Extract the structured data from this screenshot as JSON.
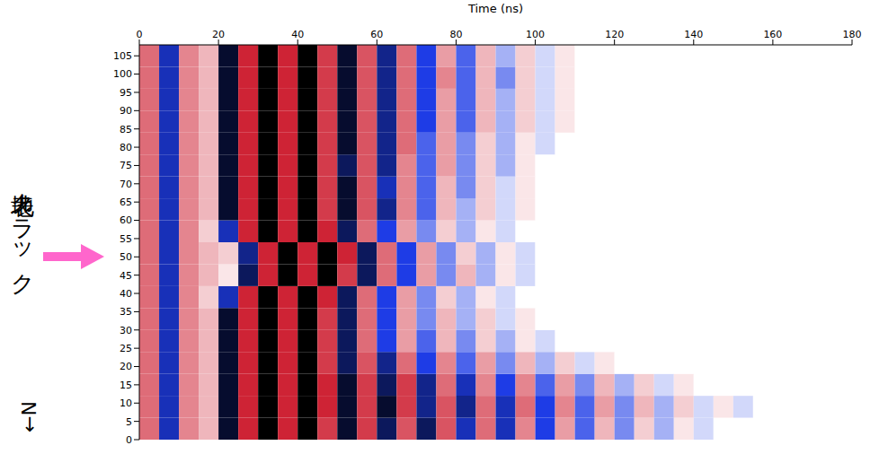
{
  "chart_data": {
    "type": "heatmap",
    "x_label": "Time (ns)",
    "annotations": [
      {
        "text": "地表クラック",
        "y": 50
      },
      {
        "text": "←N"
      }
    ],
    "xlim": [
      0,
      180
    ],
    "xticks": [
      0,
      20,
      40,
      60,
      80,
      100,
      120,
      140,
      160,
      180
    ],
    "ylim": [
      0,
      108
    ],
    "yticks": [
      0,
      5,
      10,
      15,
      20,
      25,
      30,
      35,
      40,
      45,
      50,
      55,
      60,
      65,
      70,
      75,
      80,
      85,
      90,
      95,
      100,
      105
    ],
    "grid": false,
    "color_range": [
      -1,
      1
    ],
    "x": [
      2.5,
      7.5,
      12.5,
      17.5,
      22.5,
      27.5,
      32.5,
      37.5,
      42.5,
      47.5,
      52.5,
      57.5,
      62.5,
      67.5,
      72.5,
      77.5,
      82.5,
      87.5,
      92.5,
      97.5,
      102.5,
      107.5,
      112.5,
      117.5,
      122.5,
      127.5,
      132.5,
      137.5,
      142.5,
      147.5,
      152.5,
      157.5,
      162.5,
      167.5,
      172.5,
      177.5
    ],
    "y": [
      3,
      9,
      15,
      21,
      27,
      33,
      39,
      45,
      51,
      57,
      63,
      69,
      75,
      81,
      87,
      93,
      99,
      105
    ],
    "values": [
      [
        0.6,
        -0.6,
        0.5,
        0.3,
        -0.9,
        0.9,
        -1,
        0.9,
        -1,
        0.8,
        -0.9,
        0.8,
        -0.8,
        0.7,
        -0.8,
        0.7,
        -0.6,
        0.6,
        -0.6,
        0.5,
        -0.5,
        0.4,
        -0.4,
        0.3,
        -0.3,
        0.2,
        -0.2,
        0.1,
        -0.1,
        0,
        0,
        0,
        0,
        0,
        0,
        0
      ],
      [
        0.6,
        -0.6,
        0.5,
        0.3,
        -0.9,
        0.9,
        -1,
        0.9,
        -1,
        0.9,
        -0.9,
        0.8,
        -0.9,
        0.8,
        -0.7,
        0.7,
        -0.7,
        0.6,
        -0.6,
        0.6,
        -0.5,
        0.5,
        -0.4,
        0.4,
        -0.3,
        0.3,
        -0.2,
        0.2,
        -0.1,
        0.1,
        -0.1,
        0,
        0,
        0,
        0,
        0
      ],
      [
        0.6,
        -0.6,
        0.5,
        0.3,
        -0.9,
        0.9,
        -1,
        0.9,
        -1,
        0.9,
        -0.9,
        0.8,
        -0.8,
        0.8,
        -0.7,
        0.6,
        -0.6,
        0.5,
        -0.5,
        0.5,
        -0.4,
        0.4,
        -0.3,
        0.3,
        -0.2,
        0.2,
        -0.1,
        0.1,
        0,
        0,
        0,
        0,
        0,
        0,
        0,
        0
      ],
      [
        0.6,
        -0.6,
        0.5,
        0.3,
        -0.9,
        0.9,
        -1,
        0.9,
        -1,
        0.8,
        -0.8,
        0.7,
        -0.7,
        0.6,
        -0.5,
        0.5,
        -0.4,
        0.4,
        -0.3,
        0.3,
        -0.2,
        0.2,
        -0.1,
        0.1,
        0,
        0,
        0,
        0,
        0,
        0,
        0,
        0,
        0,
        0,
        0,
        0
      ],
      [
        0.6,
        -0.6,
        0.5,
        0.3,
        -0.9,
        0.9,
        -1,
        0.9,
        -1,
        0.8,
        -0.8,
        0.6,
        -0.5,
        0.4,
        -0.4,
        0.3,
        -0.3,
        0.2,
        -0.2,
        0.1,
        -0.1,
        0,
        0,
        0,
        0,
        0,
        0,
        0,
        0,
        0,
        0,
        0,
        0,
        0,
        0,
        0
      ],
      [
        0.6,
        -0.6,
        0.5,
        0.3,
        -0.9,
        0.9,
        -1,
        0.9,
        -1,
        0.8,
        -0.8,
        0.6,
        -0.5,
        0.4,
        -0.3,
        0.3,
        -0.2,
        0.2,
        -0.1,
        0.1,
        0,
        0,
        0,
        0,
        0,
        0,
        0,
        0,
        0,
        0,
        0,
        0,
        0,
        0,
        0,
        0
      ],
      [
        0.6,
        -0.6,
        0.5,
        0.2,
        -0.6,
        0.9,
        -1,
        0.9,
        -1,
        0.9,
        -0.8,
        0.6,
        -0.5,
        0.4,
        -0.3,
        0.2,
        -0.2,
        0.1,
        -0.1,
        0,
        0,
        0,
        0,
        0,
        0,
        0,
        0,
        0,
        0,
        0,
        0,
        0,
        0,
        0,
        0,
        0
      ],
      [
        0.6,
        -0.6,
        0.5,
        0.3,
        0.1,
        -0.8,
        0.9,
        -1,
        0.9,
        -1,
        0.8,
        -0.8,
        0.6,
        -0.5,
        0.4,
        -0.3,
        0.3,
        -0.2,
        0.1,
        -0.1,
        0,
        0,
        0,
        0,
        0,
        0,
        0,
        0,
        0,
        0,
        0,
        0,
        0,
        0,
        0,
        0
      ],
      [
        0.6,
        -0.6,
        0.5,
        0.3,
        0.2,
        -0.7,
        0.9,
        -1,
        0.9,
        -1,
        0.9,
        -0.8,
        0.6,
        -0.5,
        0.4,
        -0.3,
        0.2,
        -0.2,
        0.1,
        -0.1,
        0,
        0,
        0,
        0,
        0,
        0,
        0,
        0,
        0,
        0,
        0,
        0,
        0,
        0,
        0,
        0
      ],
      [
        0.6,
        -0.6,
        0.5,
        0.2,
        -0.6,
        0.9,
        -1,
        0.9,
        -1,
        0.9,
        -0.8,
        0.6,
        -0.5,
        0.4,
        -0.3,
        0.2,
        -0.2,
        0.1,
        -0.1,
        0,
        0,
        0,
        0,
        0,
        0,
        0,
        0,
        0,
        0,
        0,
        0,
        0,
        0,
        0,
        0,
        0
      ],
      [
        0.6,
        -0.6,
        0.5,
        0.3,
        -0.9,
        0.9,
        -1,
        0.9,
        -1,
        0.8,
        -0.9,
        0.7,
        -0.7,
        0.5,
        -0.4,
        0.3,
        -0.2,
        0.2,
        -0.1,
        0.1,
        0,
        0,
        0,
        0,
        0,
        0,
        0,
        0,
        0,
        0,
        0,
        0,
        0,
        0,
        0,
        0
      ],
      [
        0.6,
        -0.6,
        0.5,
        0.3,
        -0.9,
        0.9,
        -1,
        0.9,
        -1,
        0.8,
        -0.9,
        0.7,
        -0.6,
        0.5,
        -0.4,
        0.3,
        -0.3,
        0.2,
        -0.1,
        0.1,
        0,
        0,
        0,
        0,
        0,
        0,
        0,
        0,
        0,
        0,
        0,
        0,
        0,
        0,
        0,
        0
      ],
      [
        0.6,
        -0.6,
        0.5,
        0.3,
        -0.9,
        0.9,
        -1,
        0.9,
        -1,
        0.8,
        -0.8,
        0.7,
        -0.7,
        0.5,
        -0.4,
        0.4,
        -0.3,
        0.2,
        -0.2,
        0.1,
        0,
        0,
        0,
        0,
        0,
        0,
        0,
        0,
        0,
        0,
        0,
        0,
        0,
        0,
        0,
        0
      ],
      [
        0.6,
        -0.6,
        0.5,
        0.3,
        -0.9,
        0.9,
        -1,
        0.9,
        -1,
        0.8,
        -0.9,
        0.7,
        -0.7,
        0.6,
        -0.4,
        0.4,
        -0.3,
        0.2,
        -0.2,
        0.1,
        -0.1,
        0,
        0,
        0,
        0,
        0,
        0,
        0,
        0,
        0,
        0,
        0,
        0,
        0,
        0,
        0
      ],
      [
        0.6,
        -0.6,
        0.5,
        0.3,
        -0.9,
        0.9,
        -1,
        0.9,
        -1,
        0.8,
        -0.9,
        0.7,
        -0.7,
        0.6,
        -0.5,
        0.4,
        -0.4,
        0.3,
        -0.2,
        0.2,
        -0.1,
        0.1,
        0,
        0,
        0,
        0,
        0,
        0,
        0,
        0,
        0,
        0,
        0,
        0,
        0,
        0
      ],
      [
        0.6,
        -0.6,
        0.5,
        0.3,
        -0.9,
        0.9,
        -1,
        0.9,
        -1,
        0.8,
        -0.9,
        0.7,
        -0.7,
        0.6,
        -0.5,
        0.4,
        -0.4,
        0.3,
        -0.2,
        0.2,
        -0.1,
        0.1,
        0,
        0,
        0,
        0,
        0,
        0,
        0,
        0,
        0,
        0,
        0,
        0,
        0,
        0
      ],
      [
        0.6,
        -0.6,
        0.5,
        0.3,
        -0.9,
        0.9,
        -1,
        0.9,
        -1,
        0.8,
        -0.9,
        0.7,
        -0.7,
        0.6,
        -0.5,
        0.5,
        -0.4,
        0.3,
        -0.3,
        0.2,
        -0.1,
        0.1,
        0,
        0,
        0,
        0,
        0,
        0,
        0,
        0,
        0,
        0,
        0,
        0,
        0,
        0
      ],
      [
        0.6,
        -0.6,
        0.5,
        0.3,
        -0.9,
        0.9,
        -1,
        0.9,
        -1,
        0.8,
        -0.9,
        0.7,
        -0.7,
        0.6,
        -0.5,
        0.4,
        -0.4,
        0.3,
        -0.2,
        0.2,
        -0.1,
        0.1,
        0,
        0,
        0,
        0,
        0,
        0,
        0,
        0,
        0,
        0,
        0,
        0,
        0,
        0
      ]
    ]
  }
}
